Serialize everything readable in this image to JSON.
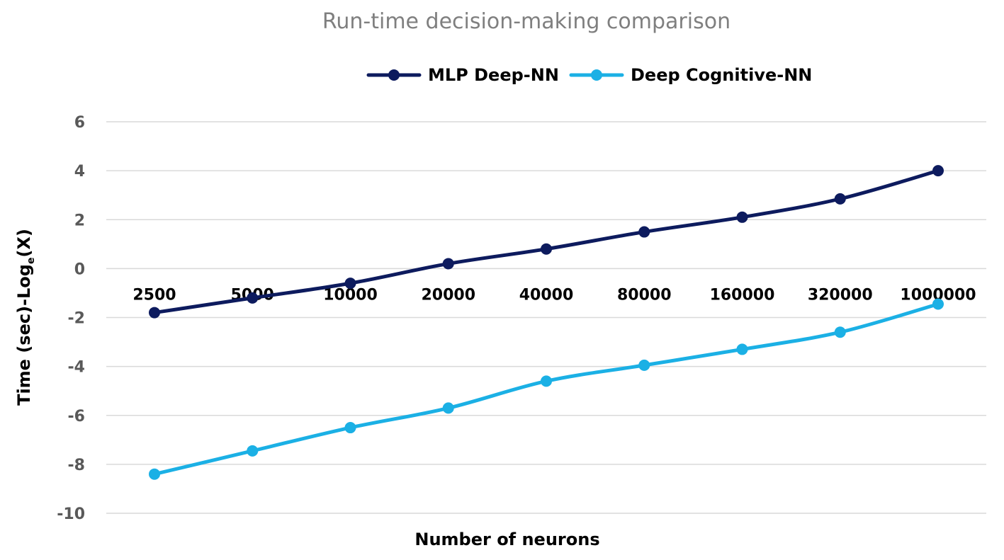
{
  "chart_data": {
    "type": "line",
    "title": "Run-time decision-making comparison",
    "xlabel": "Number of neurons",
    "ylabel": {
      "prefix": "Time (sec)-Log",
      "subscript": "e",
      "suffix": "(X)"
    },
    "categories": [
      "2500",
      "5000",
      "10000",
      "20000",
      "40000",
      "80000",
      "160000",
      "320000",
      "1000000"
    ],
    "ylim": [
      -10,
      6
    ],
    "yticks": [
      6,
      4,
      2,
      0,
      -2,
      -4,
      -6,
      -8,
      -10
    ],
    "grid": true,
    "legend_position": "top-center",
    "series": [
      {
        "name": "MLP Deep-NN",
        "color": "#0d1b5e",
        "values": [
          -1.8,
          -1.2,
          -0.6,
          0.2,
          0.8,
          1.5,
          2.1,
          2.85,
          4.0
        ]
      },
      {
        "name": "Deep Cognitive-NN",
        "color": "#1bb0e5",
        "values": [
          -8.4,
          -7.45,
          -6.5,
          -5.7,
          -4.6,
          -3.95,
          -3.3,
          -2.6,
          -1.45
        ]
      }
    ]
  }
}
